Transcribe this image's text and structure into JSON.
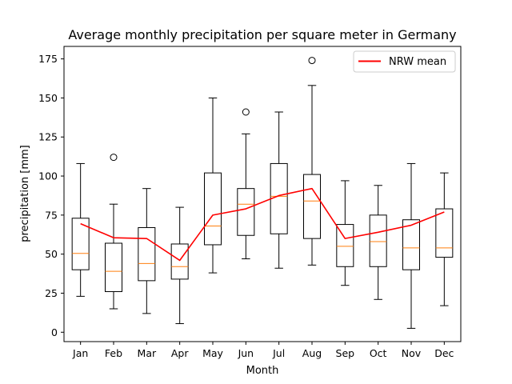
{
  "chart_data": {
    "type": "box",
    "title": "Average monthly precipitation per square meter in Germany",
    "xlabel": "Month",
    "ylabel": "precipitation [mm]",
    "categories": [
      "Jan",
      "Feb",
      "Mar",
      "Apr",
      "May",
      "Jun",
      "Jul",
      "Aug",
      "Sep",
      "Oct",
      "Nov",
      "Dec"
    ],
    "ylim": [
      -6,
      183
    ],
    "yticks": [
      0,
      25,
      50,
      75,
      100,
      125,
      150,
      175
    ],
    "boxes": [
      {
        "whislo": 23,
        "q1": 40,
        "med": 50.5,
        "q3": 73,
        "whishi": 108,
        "fliers": []
      },
      {
        "whislo": 15,
        "q1": 26,
        "med": 39,
        "q3": 57,
        "whishi": 82,
        "fliers": [
          112
        ]
      },
      {
        "whislo": 12,
        "q1": 33,
        "med": 44,
        "q3": 67,
        "whishi": 92,
        "fliers": []
      },
      {
        "whislo": 5.5,
        "q1": 34,
        "med": 42,
        "q3": 56.5,
        "whishi": 80,
        "fliers": []
      },
      {
        "whislo": 38,
        "q1": 56,
        "med": 68,
        "q3": 102,
        "whishi": 150,
        "fliers": []
      },
      {
        "whislo": 47,
        "q1": 62,
        "med": 82,
        "q3": 92,
        "whishi": 127,
        "fliers": [
          141
        ]
      },
      {
        "whislo": 41,
        "q1": 63,
        "med": 87,
        "q3": 108,
        "whishi": 141,
        "fliers": []
      },
      {
        "whislo": 43,
        "q1": 60,
        "med": 84,
        "q3": 101,
        "whishi": 158,
        "fliers": [
          174
        ]
      },
      {
        "whislo": 30,
        "q1": 42,
        "med": 55,
        "q3": 69,
        "whishi": 97,
        "fliers": []
      },
      {
        "whislo": 21,
        "q1": 42,
        "med": 58,
        "q3": 75,
        "whishi": 94,
        "fliers": []
      },
      {
        "whislo": 2.5,
        "q1": 40,
        "med": 54,
        "q3": 72,
        "whishi": 108,
        "fliers": []
      },
      {
        "whislo": 17,
        "q1": 48,
        "med": 54,
        "q3": 79,
        "whishi": 102,
        "fliers": []
      }
    ],
    "series": [
      {
        "name": "NRW mean",
        "type": "line",
        "color": "#ff0000",
        "values": [
          69.5,
          60.5,
          60,
          46,
          75,
          79,
          87.5,
          92,
          60,
          64,
          68.5,
          77
        ]
      }
    ],
    "colors": {
      "box": "#000000",
      "median": "#ff7f0e",
      "line": "#ff0000"
    },
    "legend": {
      "placement": "top-right"
    },
    "grid": false
  }
}
